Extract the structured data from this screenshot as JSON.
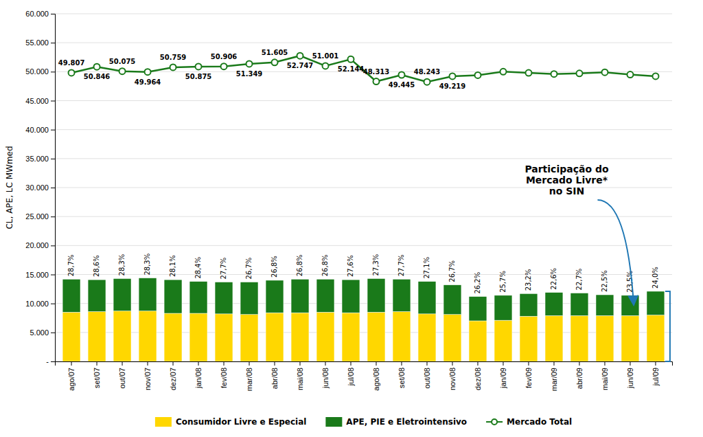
{
  "chart_data": {
    "type": "bar",
    "stacked": true,
    "categories": [
      "ago/07",
      "set/07",
      "out/07",
      "nov/07",
      "dez/07",
      "jan/08",
      "fev/08",
      "mar/08",
      "abr/08",
      "mai/08",
      "jun/08",
      "jul/08",
      "ago/08",
      "set/08",
      "out/08",
      "nov/08",
      "dez/08",
      "jan/09",
      "fev/09",
      "mar/09",
      "abr/09",
      "mai/09",
      "jun/09",
      "jul/09"
    ],
    "series": [
      {
        "name": "Consumidor Livre e Especial",
        "color": "#FFD700",
        "values": [
          8500,
          8600,
          8700,
          8700,
          8300,
          8300,
          8200,
          8100,
          8400,
          8400,
          8500,
          8400,
          8500,
          8600,
          8200,
          8100,
          7000,
          7100,
          7800,
          7900,
          7900,
          7900,
          7900,
          8000
        ]
      },
      {
        "name": "APE, PIE e Eletrointensivo",
        "color": "#1a7a1a",
        "values": [
          5700,
          5500,
          5600,
          5700,
          5800,
          5500,
          5500,
          5600,
          5600,
          5800,
          5700,
          5700,
          5800,
          5600,
          5600,
          5100,
          4200,
          4300,
          3900,
          4000,
          3900,
          3600,
          3500,
          4100
        ]
      },
      {
        "name": "Mercado Total",
        "type": "line",
        "axis": "y2",
        "color": "#1a7a1a",
        "marker": "circle",
        "values": [
          49807,
          50846,
          50075,
          49964,
          50759,
          50875,
          50906,
          51349,
          51605,
          52747,
          51001,
          52144,
          48313,
          49445,
          48243,
          49219,
          49400,
          50000,
          49800,
          49600,
          49700,
          49900,
          49500,
          49219
        ],
        "value_labels": [
          "49.807",
          "50.846",
          "50.075",
          "49.964",
          "50.759",
          "50.875",
          "50.906",
          "51.349",
          "51.605",
          "52.747",
          "51.001",
          "52.144",
          "48.313",
          "49.445",
          "48.243",
          "49.219",
          null,
          null,
          null,
          null,
          null,
          null,
          null,
          null
        ]
      }
    ],
    "shares": {
      "values": [
        28.7,
        28.6,
        28.3,
        28.3,
        28.1,
        28.4,
        27.7,
        26.7,
        26.8,
        26.8,
        26.8,
        27.6,
        27.3,
        27.7,
        27.1,
        26.7,
        26.2,
        25.7,
        23.2,
        22.6,
        22.7,
        22.5,
        23.5,
        24.0
      ],
      "value_labels": [
        "28,7%",
        "28,6%",
        "28,3%",
        "28,3%",
        "28,1%",
        "28,4%",
        "27,7%",
        "26,7%",
        "26,8%",
        "26,8%",
        "26,8%",
        "27,6%",
        "27,3%",
        "27,7%",
        "27,1%",
        "26,7%",
        "26,2%",
        "25,7%",
        "23,2%",
        "22,6%",
        "22,7%",
        "22,5%",
        "23,5%",
        "24,0%"
      ]
    },
    "ylabel": "CL, APE, LC MWmed",
    "ylim": [
      0,
      60000
    ],
    "yticks": [
      {
        "value": 0,
        "label": "-"
      },
      {
        "value": 5000,
        "label": "5.000"
      },
      {
        "value": 10000,
        "label": "10.000"
      },
      {
        "value": 15000,
        "label": "15.000"
      },
      {
        "value": 20000,
        "label": "20.000"
      },
      {
        "value": 25000,
        "label": "25.000"
      },
      {
        "value": 30000,
        "label": "30.000"
      },
      {
        "value": 35000,
        "label": "35.000"
      },
      {
        "value": 40000,
        "label": "40.000"
      },
      {
        "value": 45000,
        "label": "45.000"
      },
      {
        "value": 50000,
        "label": "50.000"
      },
      {
        "value": 55000,
        "label": "55.000"
      },
      {
        "value": 60000,
        "label": "60.000"
      }
    ],
    "y2lim": [
      0,
      60000
    ],
    "y2ticks": [],
    "grid": true,
    "legend": "bottom",
    "annotation": "Participação do\nMercado Livre*\nno SIN"
  }
}
